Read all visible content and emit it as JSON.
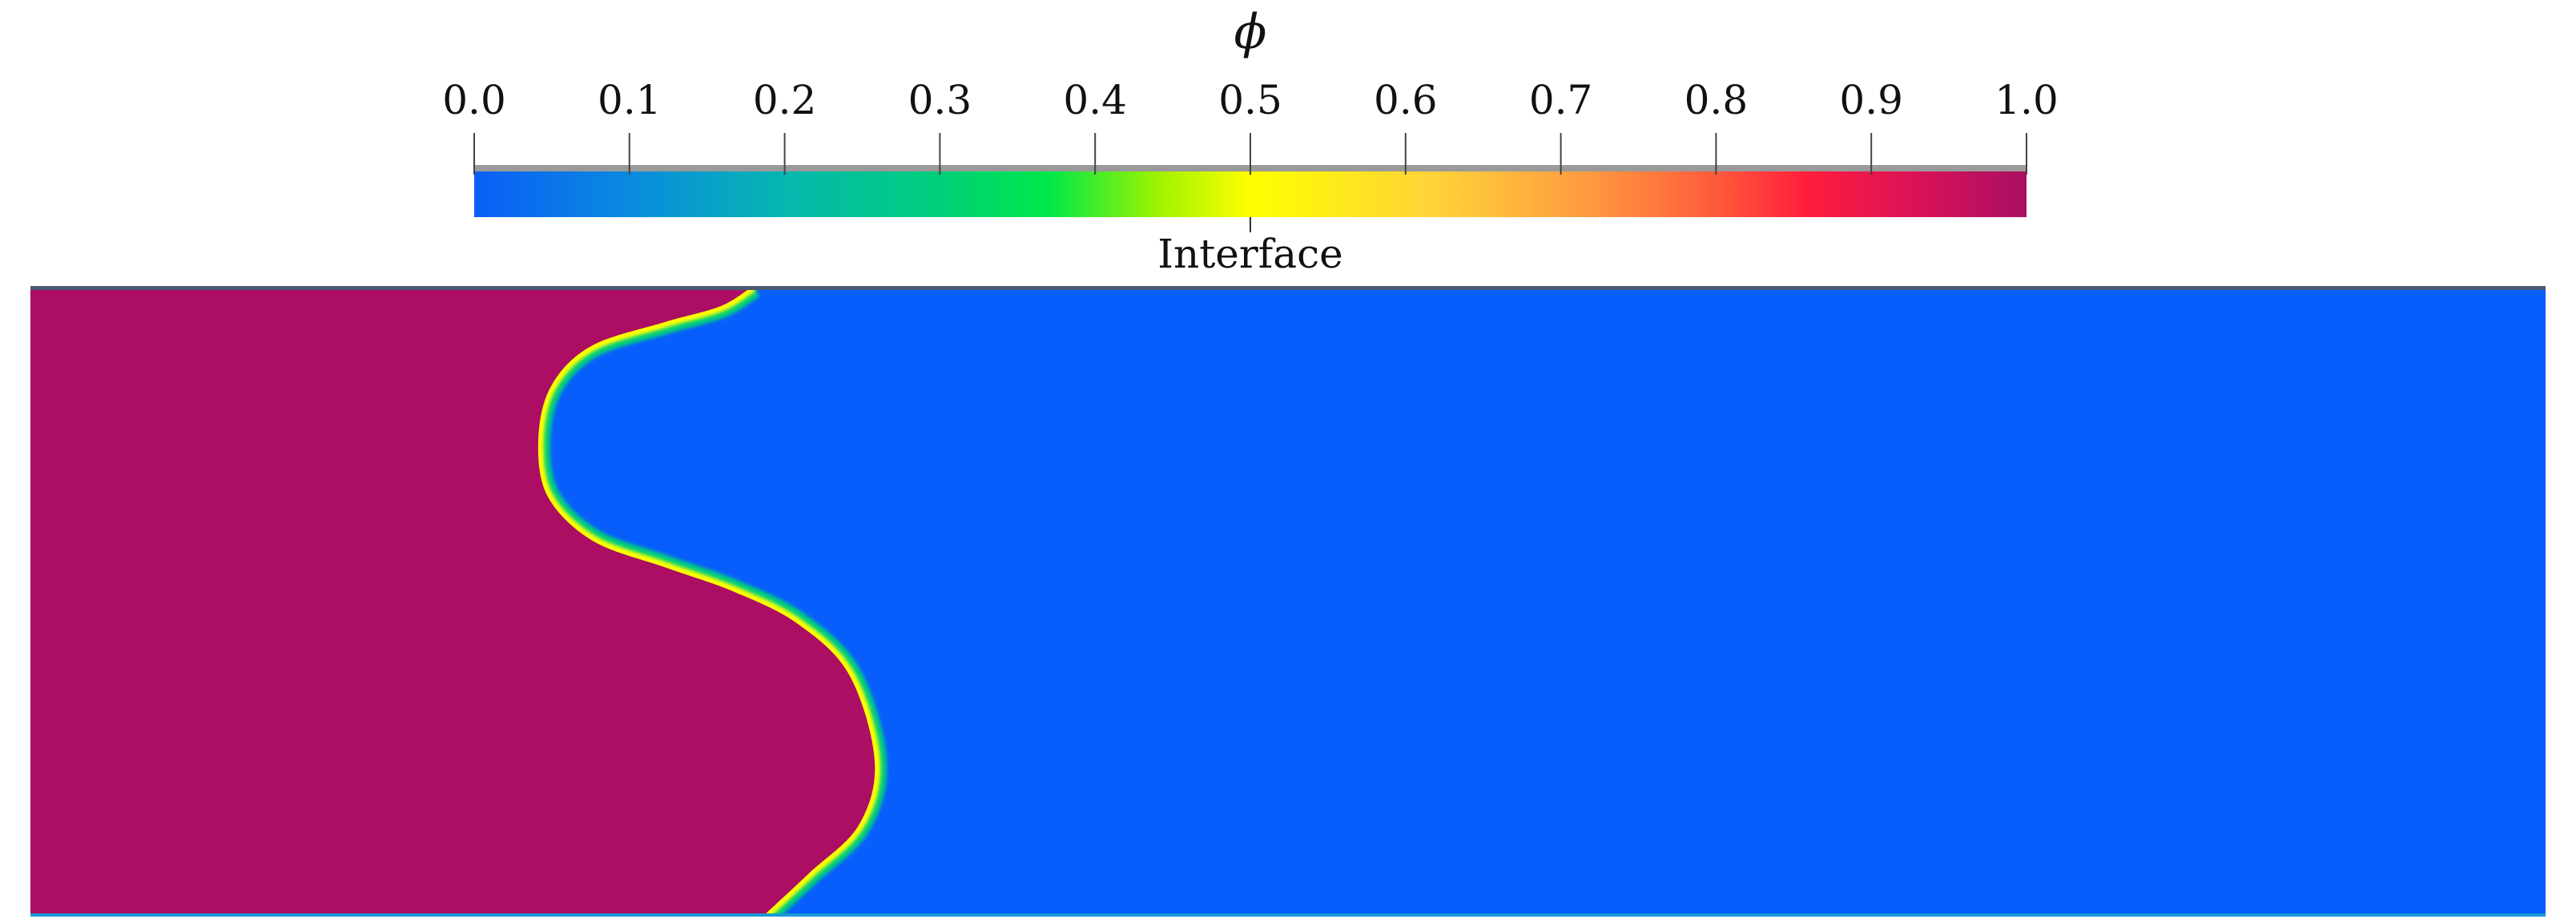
{
  "colorbar": {
    "symbol": "ϕ",
    "ticks": [
      "0.0",
      "0.1",
      "0.2",
      "0.3",
      "0.4",
      "0.5",
      "0.6",
      "0.7",
      "0.8",
      "0.9",
      "1.0"
    ],
    "range": [
      0.0,
      1.0
    ],
    "annotation": "Interface",
    "annotation_value": 0.5,
    "colormap": [
      {
        "value": 0.0,
        "color": "#0a5ff5"
      },
      {
        "value": 0.1,
        "color": "#0a8ae0"
      },
      {
        "value": 0.2,
        "color": "#06b7b0"
      },
      {
        "value": 0.3,
        "color": "#00cf7a"
      },
      {
        "value": 0.37,
        "color": "#00e84a"
      },
      {
        "value": 0.44,
        "color": "#9ef200"
      },
      {
        "value": 0.5,
        "color": "#ffff00"
      },
      {
        "value": 0.62,
        "color": "#ffd23a"
      },
      {
        "value": 0.72,
        "color": "#ff9940"
      },
      {
        "value": 0.8,
        "color": "#ff5a3a"
      },
      {
        "value": 0.86,
        "color": "#ff1c3d"
      },
      {
        "value": 0.93,
        "color": "#d91258"
      },
      {
        "value": 1.0,
        "color": "#a90f63"
      }
    ]
  },
  "field": {
    "phase_one_value": 1.0,
    "phase_one_color": "#ab0e63",
    "phase_two_value": 0.0,
    "phase_two_color": "#075efd"
  }
}
